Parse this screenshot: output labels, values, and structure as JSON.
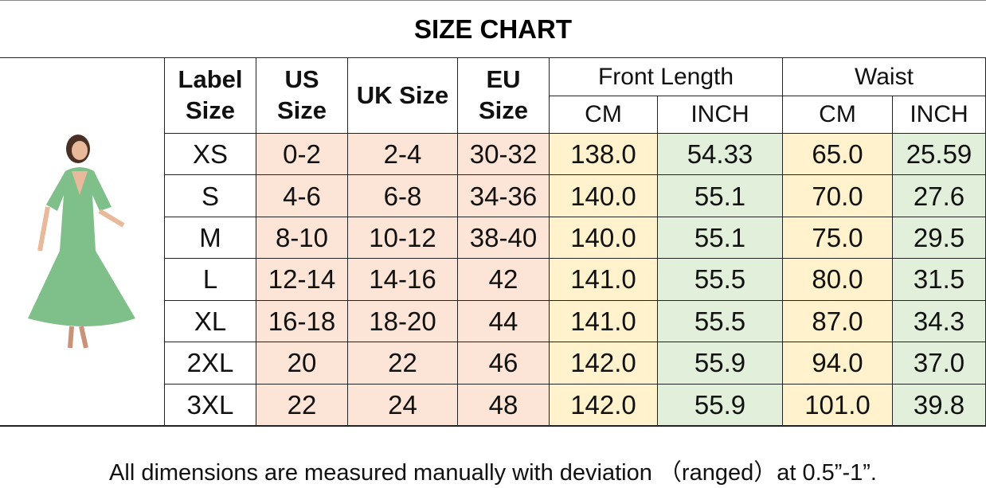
{
  "title": "SIZE CHART",
  "table": {
    "header": [
      "Label Size",
      "US Size",
      "UK Size",
      "EU Size"
    ],
    "groups": [
      {
        "label": "Front Length",
        "units": [
          "CM",
          "INCH"
        ]
      },
      {
        "label": "Waist",
        "units": [
          "CM",
          "INCH"
        ]
      }
    ],
    "rows": [
      [
        "XS",
        "0-2",
        "2-4",
        "30-32",
        "138.0",
        "54.33",
        "65.0",
        "25.59"
      ],
      [
        "S",
        "4-6",
        "6-8",
        "34-36",
        "140.0",
        "55.1",
        "70.0",
        "27.6"
      ],
      [
        "M",
        "8-10",
        "10-12",
        "38-40",
        "140.0",
        "55.1",
        "75.0",
        "29.5"
      ],
      [
        "L",
        "12-14",
        "14-16",
        "42",
        "141.0",
        "55.5",
        "80.0",
        "31.5"
      ],
      [
        "XL",
        "16-18",
        "18-20",
        "44",
        "141.0",
        "55.5",
        "87.0",
        "34.3"
      ],
      [
        "2XL",
        "20",
        "22",
        "46",
        "142.0",
        "55.9",
        "94.0",
        "37.0"
      ],
      [
        "3XL",
        "22",
        "24",
        "48",
        "142.0",
        "55.9",
        "101.0",
        "39.8"
      ]
    ]
  },
  "footnote": "All dimensions are measured manually with deviation （ranged）at 0.5”-1”."
}
